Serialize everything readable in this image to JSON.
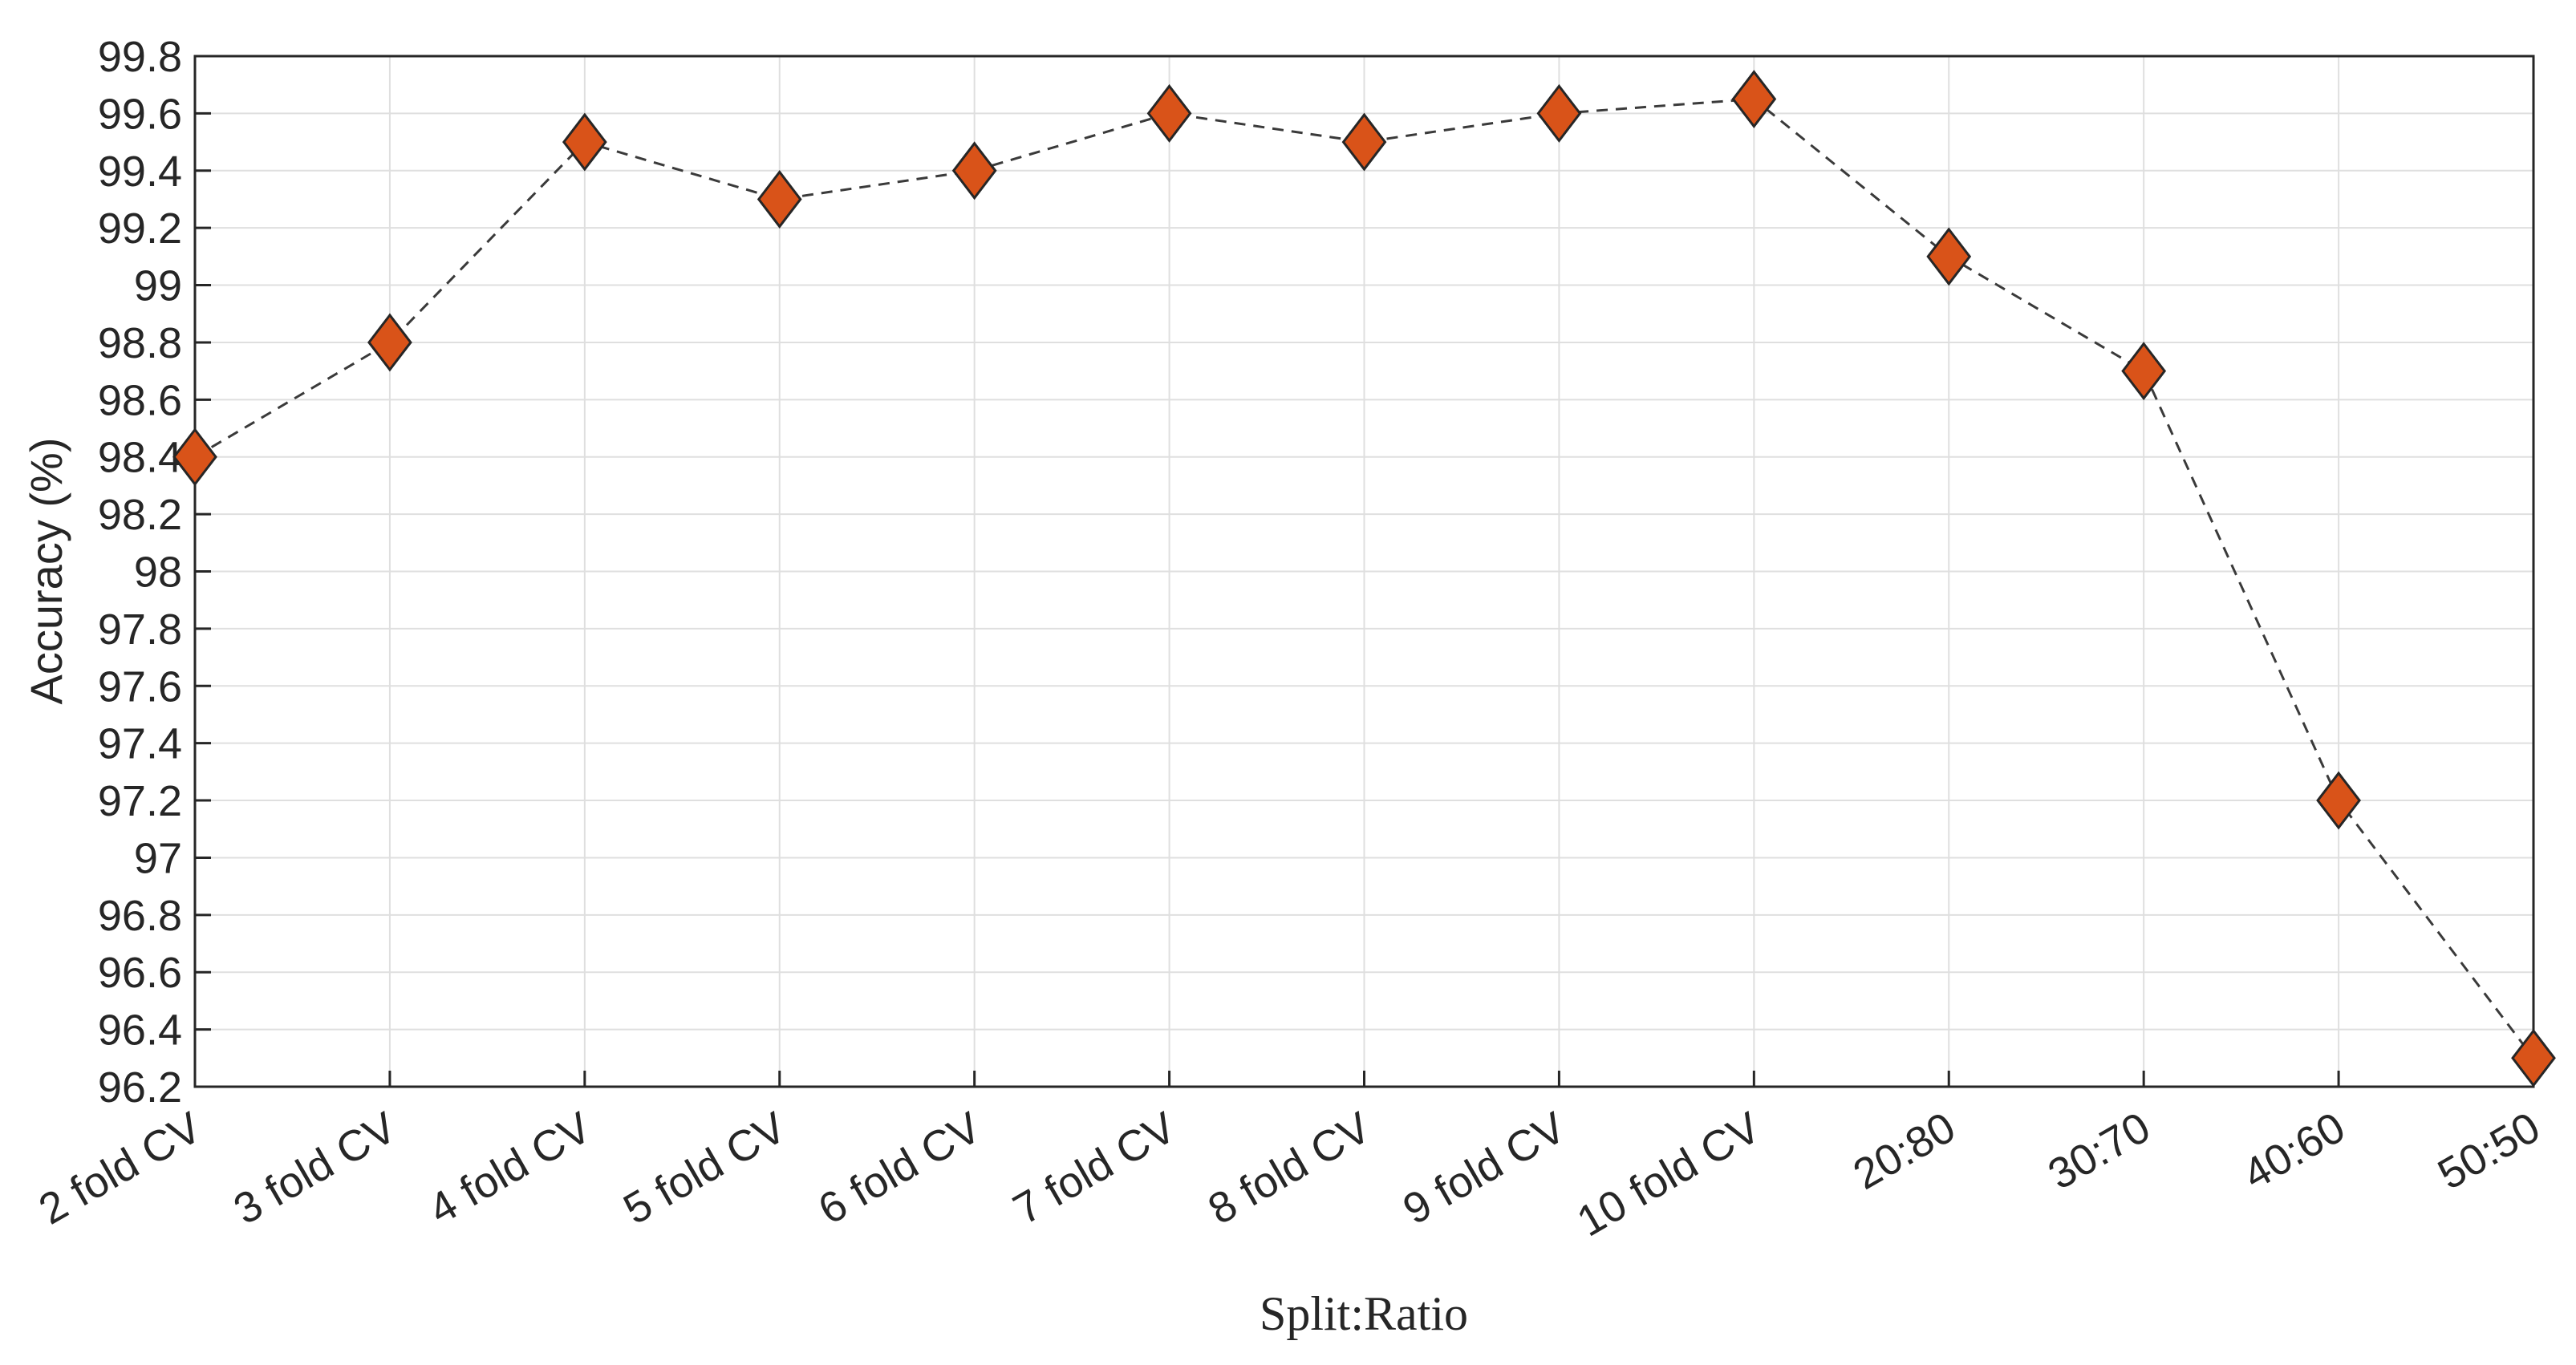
{
  "chart_data": {
    "type": "line",
    "categories": [
      "2 fold CV",
      "3 fold CV",
      "4 fold CV",
      "5 fold CV",
      "6 fold CV",
      "7 fold CV",
      "8 fold CV",
      "9 fold CV",
      "10 fold CV",
      "20:80",
      "30:70",
      "40:60",
      "50:50"
    ],
    "series": [
      {
        "values": [
          98.4,
          98.8,
          99.5,
          99.3,
          99.4,
          99.6,
          99.5,
          99.6,
          99.65,
          99.1,
          98.7,
          97.2,
          96.3
        ],
        "line_color": "#3a3a3a",
        "marker": "diamond",
        "marker_color": "#D95319"
      }
    ],
    "xlabel": "Split:Ratio",
    "ylabel": "Accuracy (%)",
    "ylim": [
      96.2,
      99.8
    ],
    "yticks": [
      "96.2",
      "96.4",
      "96.6",
      "96.8",
      "97",
      "97.2",
      "97.4",
      "97.6",
      "97.8",
      "98",
      "98.2",
      "98.4",
      "98.6",
      "98.8",
      "99",
      "99.2",
      "99.4",
      "99.6",
      "99.8"
    ],
    "grid": true,
    "legend": "none"
  }
}
